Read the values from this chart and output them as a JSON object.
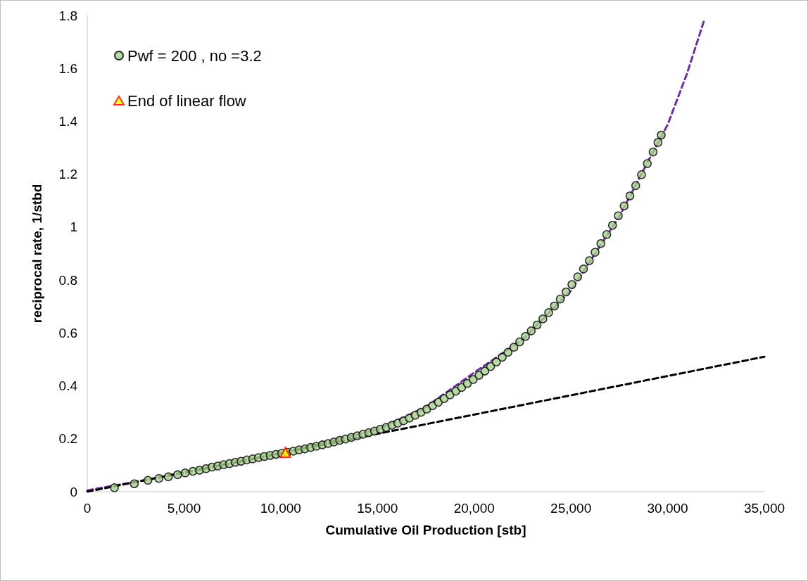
{
  "chart_data": {
    "type": "scatter",
    "xlabel": "Cumulative Oil Production [stb]",
    "ylabel": "reciprocal rate, 1/stbd",
    "xlim": [
      0,
      35000
    ],
    "xticks": [
      0,
      {
        "value": 5000,
        "label": "5,000"
      },
      {
        "value": 10000,
        "label": "10,000"
      },
      {
        "value": 15000,
        "label": "15,000"
      },
      {
        "value": 20000,
        "label": "20,000"
      },
      {
        "value": 25000,
        "label": "25,000"
      },
      {
        "value": 30000,
        "label": "30,000"
      },
      {
        "value": 35000,
        "label": "35,000"
      }
    ],
    "ylim": [
      0,
      1.8
    ],
    "yticks": [
      0,
      0.2,
      0.4,
      0.6,
      0.8,
      1,
      1.2,
      1.4,
      1.6,
      1.8
    ],
    "grid": false,
    "legend": "top left",
    "series": [
      {
        "type": "line",
        "color": "#7030a0",
        "line_style": "dashed",
        "marker": "none",
        "x": [
          0,
          5000,
          10000,
          15000,
          17500,
          20000,
          22500,
          25000,
          27500,
          29000,
          30000,
          31000,
          31880
        ],
        "values": [
          0.005,
          0.07,
          0.145,
          0.235,
          0.32,
          0.45,
          0.575,
          0.76,
          1.04,
          1.25,
          1.387,
          1.58,
          1.78
        ]
      },
      {
        "type": "line",
        "color": "#000000",
        "line_style": "dashed",
        "marker": "none",
        "x": [
          0,
          35000
        ],
        "values": [
          0,
          0.51
        ]
      },
      {
        "name": "Pwf = 200 , no =3.2",
        "color": "#a9d18e",
        "marker": "circle",
        "x": [
          1405,
          2430,
          3135,
          3700,
          4190,
          4670,
          5060,
          5460,
          5800,
          6140,
          6450,
          6750,
          7050,
          7350,
          7650,
          7950,
          8250,
          8550,
          8850,
          9150,
          9450,
          9750,
          10050,
          10350,
          10650,
          10950,
          11250,
          11550,
          11850,
          12150,
          12450,
          12750,
          13050,
          13350,
          13650,
          13950,
          14250,
          14550,
          14850,
          15150,
          15450,
          15750,
          16050,
          16350,
          16650,
          16950,
          17250,
          17550,
          17850,
          18150,
          18450,
          18750,
          19050,
          19350,
          19650,
          19950,
          20250,
          20550,
          20850,
          21150,
          21450,
          21750,
          22050,
          22350,
          22650,
          22950,
          23250,
          23550,
          23850,
          24150,
          24450,
          24750,
          25050,
          25350,
          25650,
          25950,
          26250,
          26550,
          26850,
          27150,
          27450,
          27750,
          28050,
          28350,
          28650,
          28950,
          29250,
          29500,
          29670
        ],
        "values": [
          0.015,
          0.03,
          0.043,
          0.05,
          0.056,
          0.064,
          0.071,
          0.077,
          0.081,
          0.087,
          0.093,
          0.097,
          0.102,
          0.106,
          0.111,
          0.115,
          0.12,
          0.124,
          0.129,
          0.133,
          0.137,
          0.141,
          0.145,
          0.149,
          0.153,
          0.158,
          0.162,
          0.167,
          0.172,
          0.177,
          0.182,
          0.188,
          0.194,
          0.199,
          0.205,
          0.211,
          0.217,
          0.223,
          0.229,
          0.236,
          0.243,
          0.251,
          0.259,
          0.268,
          0.278,
          0.289,
          0.3,
          0.312,
          0.325,
          0.338,
          0.352,
          0.366,
          0.38,
          0.394,
          0.409,
          0.424,
          0.44,
          0.456,
          0.473,
          0.49,
          0.508,
          0.527,
          0.546,
          0.566,
          0.587,
          0.608,
          0.63,
          0.653,
          0.677,
          0.702,
          0.728,
          0.755,
          0.783,
          0.812,
          0.842,
          0.873,
          0.905,
          0.938,
          0.972,
          1.007,
          1.043,
          1.08,
          1.118,
          1.157,
          1.198,
          1.24,
          1.284,
          1.32,
          1.348
        ]
      },
      {
        "name": "End of linear flow",
        "color": "#ffff00",
        "marker": "triangle",
        "x": [
          10240
        ],
        "values": [
          0.148
        ]
      }
    ]
  }
}
